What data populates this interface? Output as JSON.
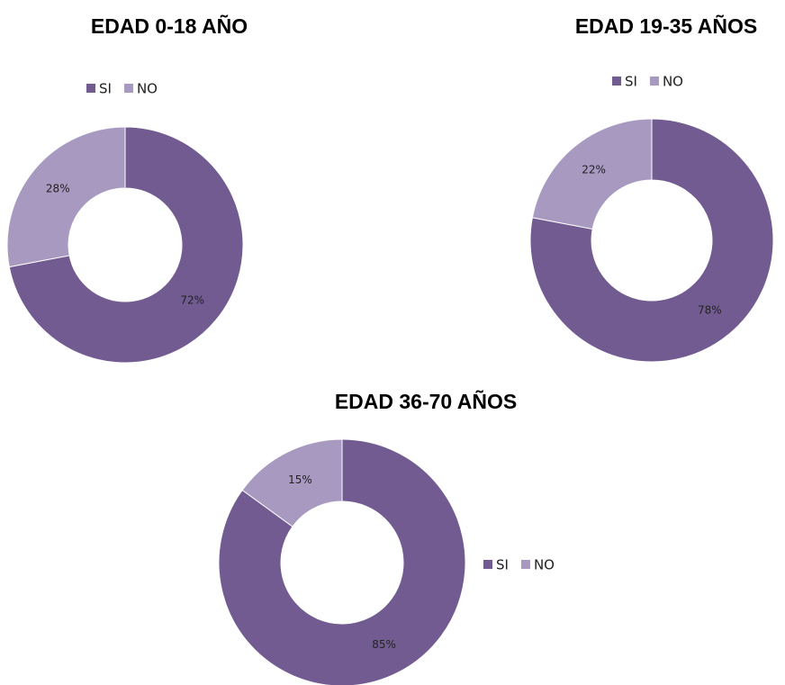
{
  "chart_data": [
    {
      "type": "donut",
      "title": "EDAD 0-18 AÑO",
      "categories": [
        "SI",
        "NO"
      ],
      "values": [
        72,
        28
      ],
      "value_labels": [
        "72%",
        "28%"
      ],
      "colors": [
        "#725b91",
        "#a899c1"
      ]
    },
    {
      "type": "donut",
      "title": "EDAD 19-35 AÑOS",
      "categories": [
        "SI",
        "NO"
      ],
      "values": [
        78,
        22
      ],
      "value_labels": [
        "78%",
        "22%"
      ],
      "colors": [
        "#725b91",
        "#a899c1"
      ]
    },
    {
      "type": "donut",
      "title": "EDAD 36-70 AÑOS",
      "categories": [
        "SI",
        "NO"
      ],
      "values": [
        85,
        15
      ],
      "value_labels": [
        "85%",
        "15%"
      ],
      "colors": [
        "#725b91",
        "#a899c1"
      ]
    }
  ]
}
